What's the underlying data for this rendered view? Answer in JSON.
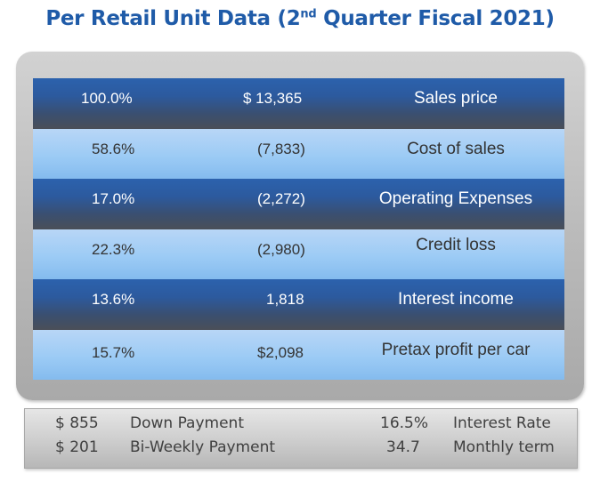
{
  "title": {
    "main": "Per Retail Unit Data (2",
    "sup": "nd",
    "rest": " Quarter Fiscal 2021)"
  },
  "rows": [
    {
      "pct": "100.0%",
      "amount": "$ 13,365",
      "label": "Sales price"
    },
    {
      "pct": "58.6%",
      "amount": "(7,833)",
      "label": "Cost of sales"
    },
    {
      "pct": "17.0%",
      "amount": "(2,272)",
      "label": "Operating Expenses"
    },
    {
      "pct": "22.3%",
      "amount": "(2,980)",
      "label": "Credit loss"
    },
    {
      "pct": "13.6%",
      "amount": "1,818",
      "label": "Interest income"
    },
    {
      "pct": "15.7%",
      "amount": "$2,098",
      "label": "Pretax profit per car"
    }
  ],
  "summary": {
    "down_payment_value": "$ 855",
    "down_payment_label": "Down Payment",
    "biweekly_value": "$ 201",
    "biweekly_label": "Bi-Weekly Payment",
    "interest_rate_value": "16.5%",
    "interest_rate_label": "Interest Rate",
    "term_value": "34.7",
    "term_label": "Monthly term"
  }
}
